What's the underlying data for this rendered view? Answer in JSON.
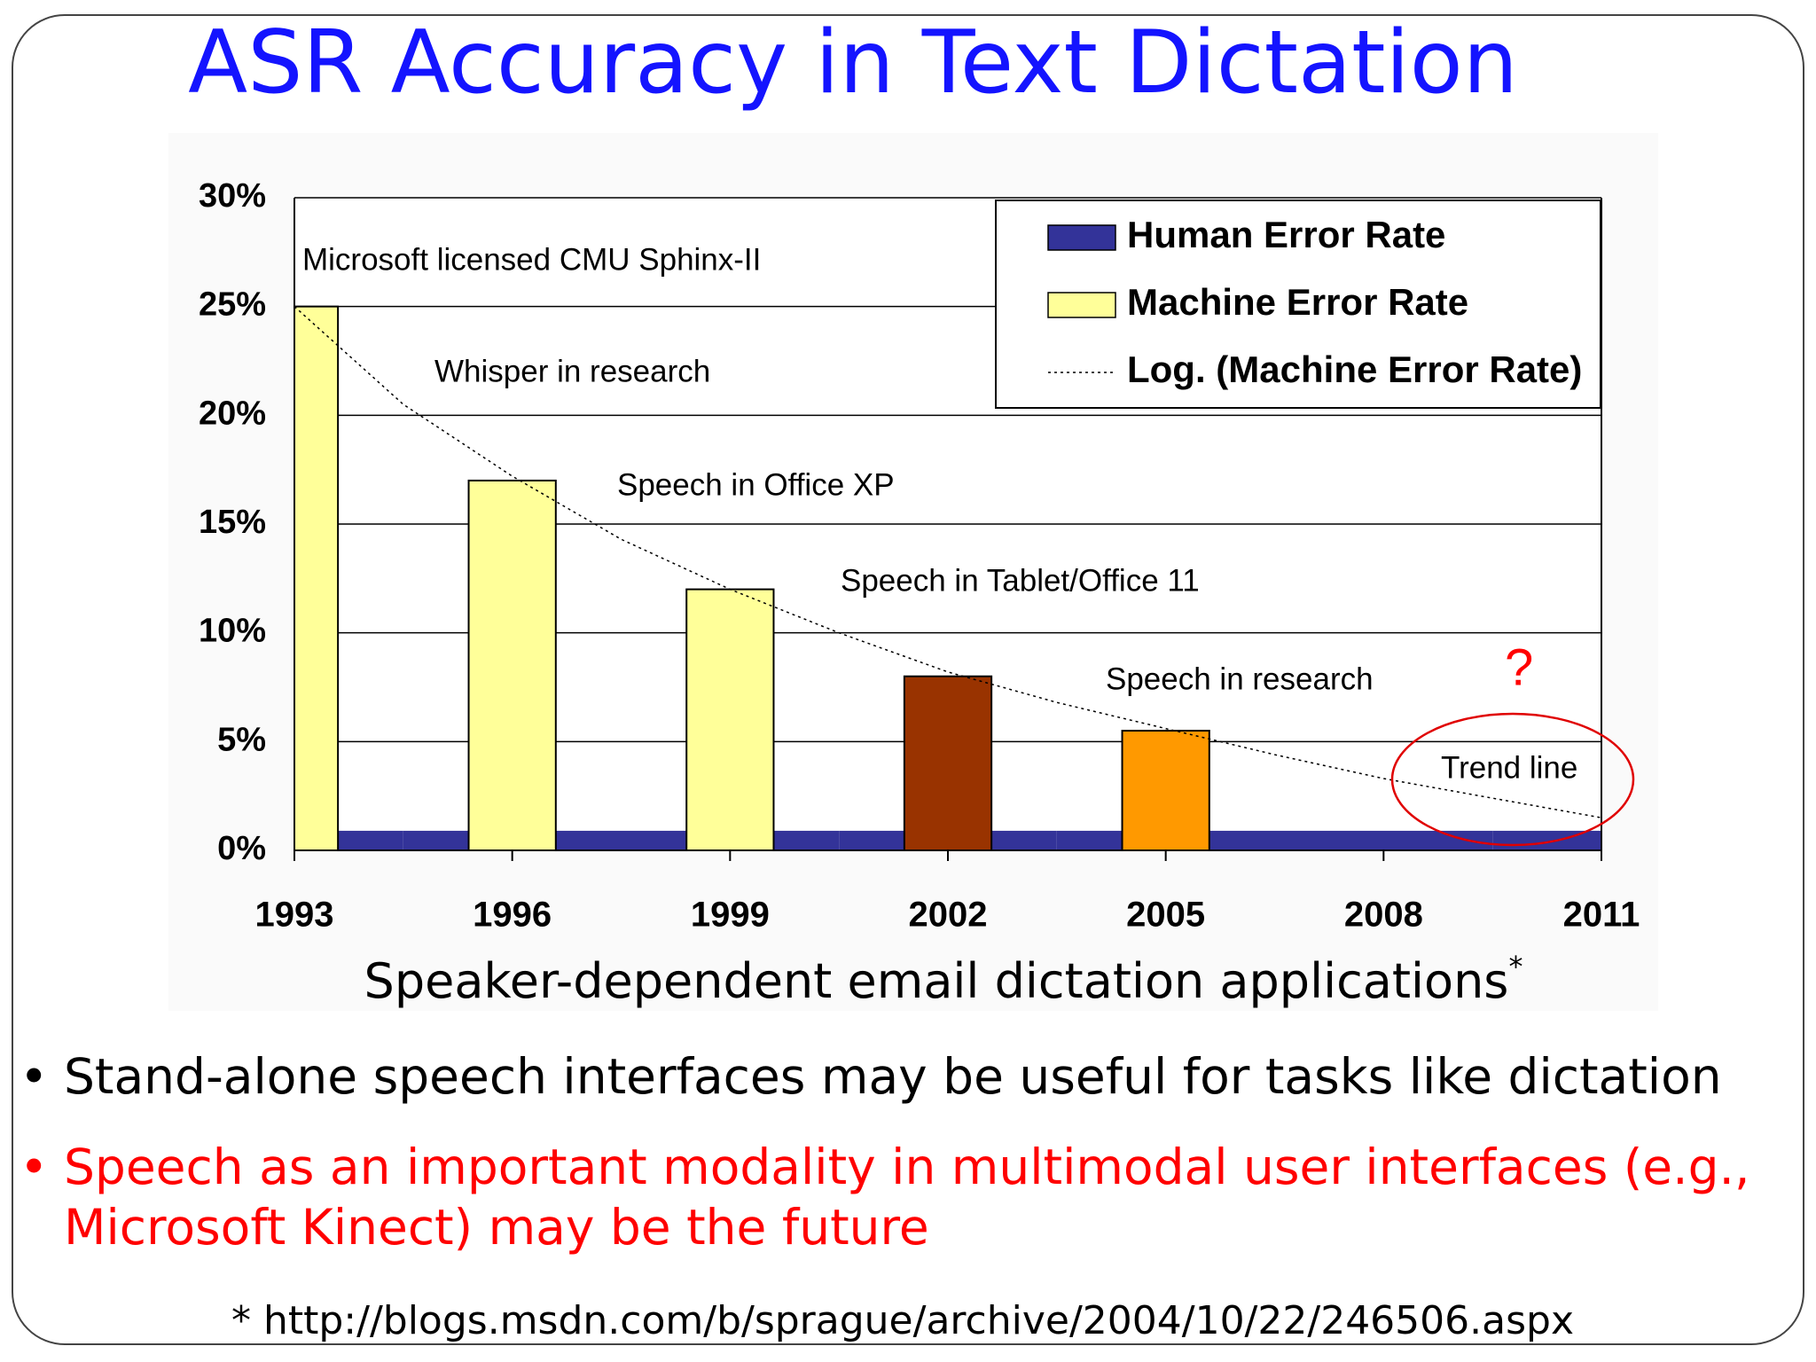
{
  "title": "ASR Accuracy in Text Dictation",
  "bullets": [
    {
      "text": "Stand-alone speech interfaces may be useful for tasks like dictation",
      "color": "#000000"
    },
    {
      "text": "Speech as an important modality in multimodal user interfaces (e.g., Microsoft Kinect) may be the future",
      "color": "#ff0000"
    }
  ],
  "footnote": "* http://blogs.msdn.com/b/sprague/archive/2004/10/22/246506.aspx",
  "chart_data": {
    "type": "bar",
    "x_label": "Speaker-dependent email dictation applications",
    "x_label_mark": "*",
    "xlim": [
      1993,
      2011
    ],
    "xticks": [
      1993,
      1996,
      1999,
      2002,
      2005,
      2008,
      2011
    ],
    "ylim": [
      0,
      30
    ],
    "yticks": [
      {
        "value": 0,
        "label": "0%"
      },
      {
        "value": 5,
        "label": "5%"
      },
      {
        "value": 10,
        "label": "10%"
      },
      {
        "value": 15,
        "label": "15%"
      },
      {
        "value": 20,
        "label": "20%"
      },
      {
        "value": 25,
        "label": "25%"
      },
      {
        "value": 30,
        "label": "30%"
      }
    ],
    "grid": true,
    "legend": "top-right",
    "series": [
      {
        "name": "Human Error Rate",
        "type": "band",
        "color": "#333399",
        "x": [
          1993,
          1996,
          1999,
          2002,
          2005,
          2008,
          2011
        ],
        "values": [
          0.9,
          0.9,
          0.9,
          0.9,
          0.9,
          0.9,
          0.9
        ]
      },
      {
        "name": "Machine Error Rate",
        "type": "bar",
        "color": "#ffff99",
        "colors": [
          "#ffff99",
          "#ffff99",
          "#ffff99",
          "#993300",
          "#ff9900"
        ],
        "x": [
          1993,
          1996,
          1999,
          2002,
          2005
        ],
        "values": [
          25,
          17,
          12,
          8,
          5.5
        ]
      },
      {
        "name": "Log. (Machine Error Rate)",
        "type": "line",
        "color": "#000000",
        "x": [
          1993,
          1994.5,
          1996,
          1997.5,
          1999,
          2000.5,
          2002,
          2003.5,
          2005,
          2006.5,
          2008,
          2009.5,
          2011
        ],
        "values": [
          25,
          20.5,
          17.2,
          14.3,
          12,
          10,
          8.2,
          6.8,
          5.6,
          4.4,
          3.3,
          2.4,
          1.5
        ]
      }
    ],
    "annotations": [
      {
        "text": "Microsoft licensed CMU Sphinx-II",
        "color": "#000000"
      },
      {
        "text": "Whisper in research",
        "color": "#000000"
      },
      {
        "text": "Speech in Office XP",
        "color": "#000000"
      },
      {
        "text": "Speech in Tablet/Office 11",
        "color": "#000000"
      },
      {
        "text": "Speech in research",
        "color": "#000000"
      },
      {
        "text": "Trend line",
        "color": "#000000"
      },
      {
        "text": "?",
        "color": "#ff0000"
      }
    ]
  }
}
